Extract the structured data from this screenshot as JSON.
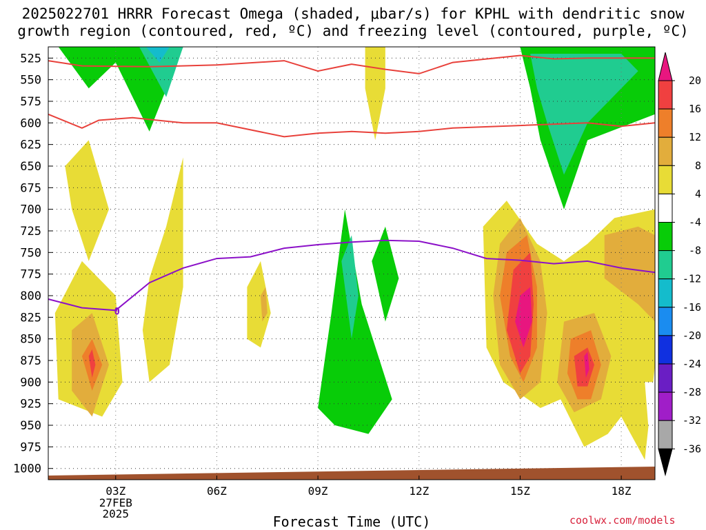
{
  "title": {
    "line1": "2025022701 HRRR Forecast Omega (shaded, μbar/s) for KPHL with dendritic snow",
    "line2": "growth region (contoured, red, ºC) and freezing level (contoured, purple, ºC)"
  },
  "chart_data": {
    "type": "time-height contour",
    "xlabel": "Forecast Time (UTC)",
    "x_ticks": [
      {
        "label": "03Z",
        "hour": 3,
        "sub": [
          "27FEB",
          "2025"
        ]
      },
      {
        "label": "06Z",
        "hour": 6
      },
      {
        "label": "09Z",
        "hour": 9
      },
      {
        "label": "12Z",
        "hour": 12
      },
      {
        "label": "15Z",
        "hour": 15
      },
      {
        "label": "18Z",
        "hour": 18
      }
    ],
    "xlim": [
      1.0,
      19.0
    ],
    "y_levels": [
      525,
      550,
      575,
      600,
      625,
      650,
      675,
      700,
      725,
      750,
      775,
      800,
      825,
      850,
      875,
      900,
      925,
      950,
      975,
      1000
    ],
    "ylim": [
      512,
      1013
    ],
    "ylabel": "",
    "grid": true,
    "colorbar": {
      "labels": [
        "20",
        "16",
        "12",
        "8",
        "4",
        "-4",
        "-8",
        "-12",
        "-16",
        "-20",
        "-24",
        "-28",
        "-32",
        "-36"
      ],
      "bins": [
        {
          "from": 20,
          "to": 24,
          "color": "#e8167f"
        },
        {
          "from": 16,
          "to": 20,
          "color": "#f04040"
        },
        {
          "from": 12,
          "to": 16,
          "color": "#ee7f2a"
        },
        {
          "from": 8,
          "to": 12,
          "color": "#e2ad3c"
        },
        {
          "from": 4,
          "to": 8,
          "color": "#e8dc36"
        },
        {
          "from": -4,
          "to": 4,
          "color": "#ffffff"
        },
        {
          "from": -8,
          "to": -4,
          "color": "#08cc08"
        },
        {
          "from": -12,
          "to": -8,
          "color": "#20cc90"
        },
        {
          "from": -16,
          "to": -12,
          "color": "#14bccc"
        },
        {
          "from": -20,
          "to": -16,
          "color": "#1a8cf0"
        },
        {
          "from": -24,
          "to": -20,
          "color": "#1030e0"
        },
        {
          "from": -28,
          "to": -24,
          "color": "#6a1ec4"
        },
        {
          "from": -32,
          "to": -28,
          "color": "#a01ec8"
        },
        {
          "from": -36,
          "to": -32,
          "color": "#a8a8a8"
        },
        {
          "from": -40,
          "to": -36,
          "color": "#000000"
        }
      ]
    },
    "contours": {
      "dgz_upper_red": [
        [
          1.0,
          528
        ],
        [
          2.0,
          534
        ],
        [
          4.0,
          535
        ],
        [
          6.0,
          533
        ],
        [
          8.0,
          528
        ],
        [
          9.0,
          540
        ],
        [
          10.0,
          532
        ],
        [
          11.0,
          538
        ],
        [
          12.0,
          543
        ],
        [
          13.0,
          530
        ],
        [
          15.0,
          522
        ],
        [
          16.0,
          526
        ],
        [
          17.0,
          525
        ],
        [
          19.0,
          525
        ]
      ],
      "dgz_lower_red": [
        [
          1.0,
          590
        ],
        [
          2.0,
          606
        ],
        [
          2.5,
          597
        ],
        [
          3.5,
          594
        ],
        [
          5.0,
          600
        ],
        [
          6.0,
          600
        ],
        [
          8.0,
          616
        ],
        [
          9.0,
          612
        ],
        [
          10.0,
          610
        ],
        [
          11.0,
          612
        ],
        [
          12.0,
          610
        ],
        [
          13.0,
          606
        ],
        [
          15.0,
          603
        ],
        [
          17.0,
          600
        ],
        [
          18.0,
          604
        ],
        [
          19.0,
          600
        ]
      ],
      "freezing_level_purple": [
        [
          1.0,
          804
        ],
        [
          2.0,
          814
        ],
        [
          3.0,
          817
        ],
        [
          4.0,
          785
        ],
        [
          5.0,
          768
        ],
        [
          6.0,
          757
        ],
        [
          7.0,
          755
        ],
        [
          8.0,
          745
        ],
        [
          9.0,
          741
        ],
        [
          10.0,
          738
        ],
        [
          11.0,
          736
        ],
        [
          12.0,
          737
        ],
        [
          13.0,
          745
        ],
        [
          14.0,
          757
        ],
        [
          15.0,
          759
        ],
        [
          16.0,
          763
        ],
        [
          17.0,
          760
        ],
        [
          18.0,
          768
        ],
        [
          19.0,
          773
        ]
      ],
      "freezing_level_label": "0"
    },
    "shaded_regions": [
      {
        "value": -8,
        "points": [
          [
            1.3,
            512
          ],
          [
            2.2,
            560
          ],
          [
            3.0,
            530
          ],
          [
            4.0,
            610
          ],
          [
            5.0,
            512
          ]
        ]
      },
      {
        "value": -12,
        "points": [
          [
            3.7,
            512
          ],
          [
            4.5,
            570
          ],
          [
            5.0,
            512
          ]
        ]
      },
      {
        "value": -16,
        "points": [
          [
            3.9,
            512
          ],
          [
            4.3,
            530
          ],
          [
            4.6,
            512
          ]
        ]
      },
      {
        "value": 4,
        "points": [
          [
            1.5,
            650
          ],
          [
            2.2,
            620
          ],
          [
            2.8,
            700
          ],
          [
            2.2,
            760
          ],
          [
            1.7,
            700
          ]
        ]
      },
      {
        "value": 4,
        "points": [
          [
            1.2,
            820
          ],
          [
            2.0,
            760
          ],
          [
            3.0,
            800
          ],
          [
            3.2,
            900
          ],
          [
            2.6,
            940
          ],
          [
            1.3,
            920
          ]
        ]
      },
      {
        "value": 8,
        "points": [
          [
            1.7,
            840
          ],
          [
            2.3,
            820
          ],
          [
            2.8,
            880
          ],
          [
            2.3,
            940
          ],
          [
            1.7,
            910
          ]
        ]
      },
      {
        "value": 12,
        "points": [
          [
            2.0,
            870
          ],
          [
            2.3,
            850
          ],
          [
            2.6,
            880
          ],
          [
            2.3,
            910
          ]
        ]
      },
      {
        "value": 16,
        "points": [
          [
            2.2,
            870
          ],
          [
            2.3,
            862
          ],
          [
            2.4,
            880
          ],
          [
            2.3,
            895
          ]
        ]
      },
      {
        "value": 4,
        "points": [
          [
            4.0,
            780
          ],
          [
            4.5,
            720
          ],
          [
            5.0,
            640
          ],
          [
            5.0,
            790
          ],
          [
            4.6,
            880
          ],
          [
            4.0,
            900
          ],
          [
            3.8,
            840
          ]
        ]
      },
      {
        "value": 4,
        "points": [
          [
            6.9,
            790
          ],
          [
            7.3,
            760
          ],
          [
            7.6,
            820
          ],
          [
            7.3,
            860
          ],
          [
            6.9,
            850
          ]
        ]
      },
      {
        "value": 8,
        "points": [
          [
            7.3,
            800
          ],
          [
            7.45,
            790
          ],
          [
            7.5,
            820
          ],
          [
            7.35,
            830
          ]
        ]
      },
      {
        "value": 4,
        "points": [
          [
            10.4,
            512
          ],
          [
            11.0,
            512
          ],
          [
            11.0,
            560
          ],
          [
            10.7,
            620
          ],
          [
            10.4,
            560
          ]
        ]
      },
      {
        "value": -4,
        "points": [
          [
            8.0,
            640
          ],
          [
            8.9,
            600
          ],
          [
            9.6,
            760
          ],
          [
            10.2,
            700
          ],
          [
            10.8,
            710
          ],
          [
            11.3,
            690
          ],
          [
            11.8,
            720
          ],
          [
            11.6,
            790
          ],
          [
            12.3,
            800
          ],
          [
            12.6,
            660
          ],
          [
            13.0,
            600
          ],
          [
            13.3,
            700
          ],
          [
            13.0,
            810
          ],
          [
            13.2,
            900
          ],
          [
            12.6,
            990
          ],
          [
            11.0,
            1000
          ],
          [
            9.5,
            990
          ],
          [
            7.8,
            975
          ],
          [
            8.4,
            920
          ],
          [
            8.0,
            800
          ]
        ]
      },
      {
        "value": -8,
        "points": [
          [
            9.5,
            950
          ],
          [
            10.5,
            960
          ],
          [
            11.2,
            920
          ],
          [
            10.3,
            810
          ],
          [
            9.8,
            700
          ],
          [
            9.4,
            820
          ],
          [
            9.0,
            930
          ]
        ]
      },
      {
        "value": -8,
        "points": [
          [
            10.6,
            760
          ],
          [
            11.0,
            720
          ],
          [
            11.4,
            780
          ],
          [
            11.0,
            830
          ]
        ]
      },
      {
        "value": -12,
        "points": [
          [
            9.7,
            760
          ],
          [
            10.0,
            730
          ],
          [
            10.2,
            800
          ],
          [
            10.0,
            850
          ]
        ]
      },
      {
        "value": 4,
        "points": [
          [
            13.9,
            720
          ],
          [
            14.6,
            690
          ],
          [
            15.5,
            740
          ],
          [
            16.3,
            760
          ],
          [
            17.0,
            740
          ],
          [
            17.8,
            710
          ],
          [
            19.0,
            700
          ],
          [
            19.0,
            880
          ],
          [
            18.7,
            990
          ],
          [
            18.0,
            940
          ],
          [
            17.6,
            960
          ],
          [
            16.9,
            975
          ],
          [
            16.2,
            920
          ],
          [
            15.6,
            930
          ],
          [
            14.5,
            900
          ],
          [
            14.0,
            860
          ]
        ]
      },
      {
        "value": 8,
        "points": [
          [
            14.4,
            740
          ],
          [
            15.0,
            710
          ],
          [
            15.6,
            760
          ],
          [
            15.8,
            820
          ],
          [
            15.6,
            900
          ],
          [
            15.0,
            920
          ],
          [
            14.4,
            880
          ],
          [
            14.2,
            800
          ]
        ]
      },
      {
        "value": 8,
        "points": [
          [
            16.3,
            830
          ],
          [
            17.2,
            820
          ],
          [
            17.7,
            870
          ],
          [
            17.4,
            920
          ],
          [
            16.6,
            935
          ],
          [
            16.1,
            900
          ]
        ]
      },
      {
        "value": 8,
        "points": [
          [
            17.5,
            730
          ],
          [
            18.5,
            720
          ],
          [
            19.0,
            730
          ],
          [
            19.0,
            830
          ],
          [
            18.5,
            810
          ],
          [
            17.5,
            780
          ]
        ]
      },
      {
        "value": 12,
        "points": [
          [
            14.6,
            750
          ],
          [
            15.2,
            730
          ],
          [
            15.5,
            790
          ],
          [
            15.5,
            860
          ],
          [
            15.1,
            900
          ],
          [
            14.7,
            870
          ],
          [
            14.4,
            800
          ]
        ]
      },
      {
        "value": 12,
        "points": [
          [
            16.5,
            850
          ],
          [
            17.1,
            840
          ],
          [
            17.4,
            880
          ],
          [
            17.1,
            920
          ],
          [
            16.7,
            920
          ],
          [
            16.4,
            890
          ]
        ]
      },
      {
        "value": 16,
        "points": [
          [
            14.8,
            770
          ],
          [
            15.3,
            750
          ],
          [
            15.4,
            810
          ],
          [
            15.3,
            870
          ],
          [
            15.0,
            890
          ],
          [
            14.6,
            840
          ]
        ]
      },
      {
        "value": 20,
        "points": [
          [
            15.0,
            800
          ],
          [
            15.3,
            790
          ],
          [
            15.35,
            830
          ],
          [
            15.1,
            860
          ],
          [
            14.85,
            830
          ]
        ]
      },
      {
        "value": 16,
        "points": [
          [
            16.6,
            870
          ],
          [
            17.0,
            860
          ],
          [
            17.2,
            880
          ],
          [
            17.0,
            905
          ],
          [
            16.7,
            905
          ]
        ]
      },
      {
        "value": 20,
        "points": [
          [
            16.9,
            870
          ],
          [
            17.0,
            865
          ],
          [
            17.05,
            885
          ],
          [
            16.95,
            895
          ]
        ]
      },
      {
        "value": -4,
        "points": [
          [
            14.7,
            512
          ],
          [
            19.0,
            512
          ],
          [
            19.0,
            645
          ],
          [
            18.0,
            645
          ],
          [
            17.0,
            640
          ],
          [
            16.5,
            720
          ],
          [
            16.0,
            700
          ],
          [
            15.3,
            640
          ],
          [
            15.0,
            600
          ],
          [
            14.7,
            560
          ]
        ]
      },
      {
        "value": -8,
        "points": [
          [
            15.0,
            512
          ],
          [
            19.0,
            512
          ],
          [
            19.0,
            590
          ],
          [
            17.0,
            620
          ],
          [
            16.3,
            700
          ],
          [
            15.6,
            620
          ],
          [
            15.3,
            560
          ]
        ]
      },
      {
        "value": -12,
        "points": [
          [
            15.3,
            520
          ],
          [
            18.0,
            520
          ],
          [
            18.5,
            540
          ],
          [
            17.0,
            600
          ],
          [
            16.3,
            660
          ],
          [
            15.8,
            600
          ],
          [
            15.5,
            560
          ]
        ]
      },
      {
        "value": -4,
        "points": [
          [
            18.7,
            900
          ],
          [
            19.0,
            900
          ],
          [
            19.0,
            970
          ],
          [
            18.8,
            950
          ]
        ]
      }
    ],
    "ground": {
      "color": "#a0522d"
    }
  },
  "x_axis_title": "Forecast Time (UTC)",
  "credit": "coolwx.com/models"
}
